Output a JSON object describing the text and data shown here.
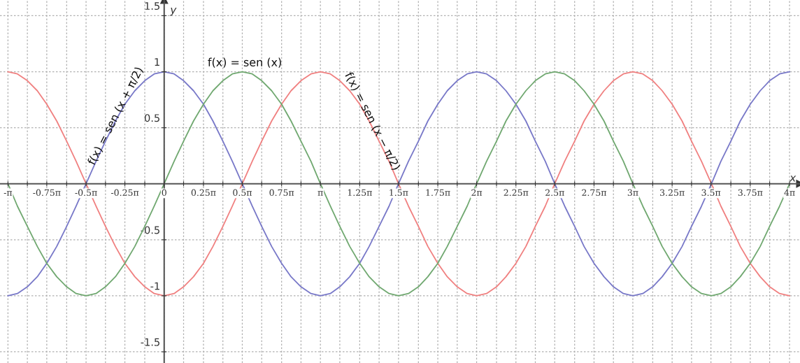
{
  "chart_data": {
    "type": "line",
    "xlabel": "x",
    "ylabel": "y",
    "x": [
      -3.14,
      -2.95,
      -2.75,
      -2.55,
      -2.36,
      -2.16,
      -1.96,
      -1.77,
      -1.57,
      -1.37,
      -1.18,
      -0.98,
      -0.79,
      -0.59,
      -0.39,
      -0.2,
      0,
      0.2,
      0.39,
      0.59,
      0.79,
      0.98,
      1.18,
      1.37,
      1.57,
      1.77,
      1.96,
      2.16,
      2.36,
      2.55,
      2.75,
      2.95,
      3.14,
      3.34,
      3.53,
      3.73,
      3.93,
      4.12,
      4.32,
      4.52,
      4.71,
      4.91,
      5.11,
      5.3,
      5.5,
      5.69,
      5.89,
      6.09,
      6.28,
      6.48,
      6.68,
      6.87,
      7.07,
      7.27,
      7.46,
      7.66,
      7.85,
      8.05,
      8.25,
      8.44,
      8.64,
      8.84,
      9.03,
      9.23,
      9.42,
      9.62,
      9.82,
      10.01,
      10.21,
      10.41,
      10.6,
      10.8,
      11,
      11.19,
      11.39,
      11.58,
      11.78,
      11.98,
      12.17,
      12.37,
      12.57
    ],
    "series": [
      {
        "color": "#f08080",
        "values": [
          1,
          0.98,
          0.92,
          0.83,
          0.71,
          0.56,
          0.38,
          0.2,
          0,
          -0.2,
          -0.38,
          -0.56,
          -0.71,
          -0.83,
          -0.92,
          -0.98,
          -1,
          -0.98,
          -0.92,
          -0.83,
          -0.71,
          -0.56,
          -0.38,
          -0.2,
          0,
          0.2,
          0.38,
          0.56,
          0.71,
          0.83,
          0.92,
          0.98,
          1,
          0.98,
          0.92,
          0.83,
          0.71,
          0.56,
          0.38,
          0.2,
          0,
          -0.2,
          -0.38,
          -0.56,
          -0.71,
          -0.83,
          -0.92,
          -0.98,
          -1,
          -0.98,
          -0.92,
          -0.83,
          -0.71,
          -0.56,
          -0.38,
          -0.2,
          0,
          0.2,
          0.38,
          0.56,
          0.71,
          0.83,
          0.92,
          0.98,
          1,
          0.98,
          0.92,
          0.83,
          0.71,
          0.56,
          0.38,
          0.2,
          0,
          -0.2,
          -0.38,
          -0.56,
          -0.71,
          -0.83,
          -0.92,
          -0.98,
          -1
        ]
      },
      {
        "color": "#7878c8",
        "values": [
          -1,
          -0.98,
          -0.92,
          -0.83,
          -0.71,
          -0.56,
          -0.38,
          -0.2,
          0,
          0.2,
          0.38,
          0.56,
          0.71,
          0.83,
          0.92,
          0.98,
          1,
          0.98,
          0.92,
          0.83,
          0.71,
          0.56,
          0.38,
          0.2,
          0,
          -0.2,
          -0.38,
          -0.56,
          -0.71,
          -0.83,
          -0.92,
          -0.98,
          -1,
          -0.98,
          -0.92,
          -0.83,
          -0.71,
          -0.56,
          -0.38,
          -0.2,
          0,
          0.2,
          0.38,
          0.56,
          0.71,
          0.83,
          0.92,
          0.98,
          1,
          0.98,
          0.92,
          0.83,
          0.71,
          0.56,
          0.38,
          0.2,
          0,
          -0.2,
          -0.38,
          -0.56,
          -0.71,
          -0.83,
          -0.92,
          -0.98,
          -1,
          -0.98,
          -0.92,
          -0.83,
          -0.71,
          -0.56,
          -0.38,
          -0.2,
          0,
          0.2,
          0.38,
          0.56,
          0.71,
          0.83,
          0.92,
          0.98,
          1
        ]
      },
      {
        "color": "#70a870",
        "values": [
          0,
          -0.2,
          -0.38,
          -0.56,
          -0.71,
          -0.83,
          -0.92,
          -0.98,
          -1,
          -0.98,
          -0.92,
          -0.83,
          -0.71,
          -0.56,
          -0.38,
          -0.2,
          0,
          0.2,
          0.38,
          0.56,
          0.71,
          0.83,
          0.92,
          0.98,
          1,
          0.98,
          0.92,
          0.83,
          0.71,
          0.56,
          0.38,
          0.2,
          0,
          -0.2,
          -0.38,
          -0.56,
          -0.71,
          -0.83,
          -0.92,
          -0.98,
          -1,
          -0.98,
          -0.92,
          -0.83,
          -0.71,
          -0.56,
          -0.38,
          -0.2,
          0,
          0.2,
          0.38,
          0.56,
          0.71,
          0.83,
          0.92,
          0.98,
          1,
          0.98,
          0.92,
          0.83,
          0.71,
          0.56,
          0.38,
          0.2,
          0,
          -0.2,
          -0.38,
          -0.56,
          -0.71,
          -0.83,
          -0.92,
          -0.98,
          -1,
          -0.98,
          -0.92,
          -0.83,
          -0.71,
          -0.56,
          -0.38,
          -0.2,
          0
        ]
      }
    ],
    "annotations": [
      "f(x) = sen (x)",
      "f(x) = sen (x + π/2)",
      "f(x) = sen (x − π/2)"
    ],
    "xlim": [
      -3.3,
      12.78
    ],
    "ylim": [
      -1.6,
      1.64
    ],
    "xticks": [
      {
        "value": -3.14,
        "label": "-π"
      },
      {
        "value": -2.75,
        "label": null
      },
      {
        "value": -2.36,
        "label": "-0.75π"
      },
      {
        "value": -1.96,
        "label": null
      },
      {
        "value": -1.57,
        "label": "-0.5π"
      },
      {
        "value": -1.18,
        "label": null
      },
      {
        "value": -0.79,
        "label": "-0.25π"
      },
      {
        "value": -0.39,
        "label": null
      },
      0,
      {
        "value": 0.39,
        "label": null
      },
      {
        "value": 0.79,
        "label": "0.25π"
      },
      {
        "value": 1.18,
        "label": null
      },
      {
        "value": 1.57,
        "label": "0.5π"
      },
      {
        "value": 1.96,
        "label": null
      },
      {
        "value": 2.36,
        "label": "0.75π"
      },
      {
        "value": 2.75,
        "label": null
      },
      {
        "value": 3.14,
        "label": "π"
      },
      {
        "value": 3.53,
        "label": null
      },
      {
        "value": 3.93,
        "label": "1.25π"
      },
      {
        "value": 4.32,
        "label": null
      },
      {
        "value": 4.71,
        "label": "1.5π"
      },
      {
        "value": 5.11,
        "label": null
      },
      {
        "value": 5.5,
        "label": "1.75π"
      },
      {
        "value": 5.89,
        "label": null
      },
      {
        "value": 6.28,
        "label": "2π"
      },
      {
        "value": 6.68,
        "label": null
      },
      {
        "value": 7.07,
        "label": "2.25π"
      },
      {
        "value": 7.46,
        "label": null
      },
      {
        "value": 7.85,
        "label": "2.5π"
      },
      {
        "value": 8.25,
        "label": null
      },
      {
        "value": 8.64,
        "label": "2.75π"
      },
      {
        "value": 9.03,
        "label": null
      },
      {
        "value": 9.42,
        "label": "3π"
      },
      {
        "value": 9.82,
        "label": null
      },
      {
        "value": 10.21,
        "label": "3.25π"
      },
      {
        "value": 10.6,
        "label": null
      },
      {
        "value": 10.99,
        "label": "3.5π"
      },
      {
        "value": 11.39,
        "label": null
      },
      {
        "value": 11.78,
        "label": "3.75π"
      },
      {
        "value": 12.17,
        "label": null
      },
      {
        "value": 12.57,
        "label": "4π"
      }
    ],
    "yticks": [
      -1.5,
      -1,
      -0.5,
      0.5,
      1,
      1.5
    ],
    "grid": true,
    "marker": "none",
    "line_style": "solid"
  }
}
